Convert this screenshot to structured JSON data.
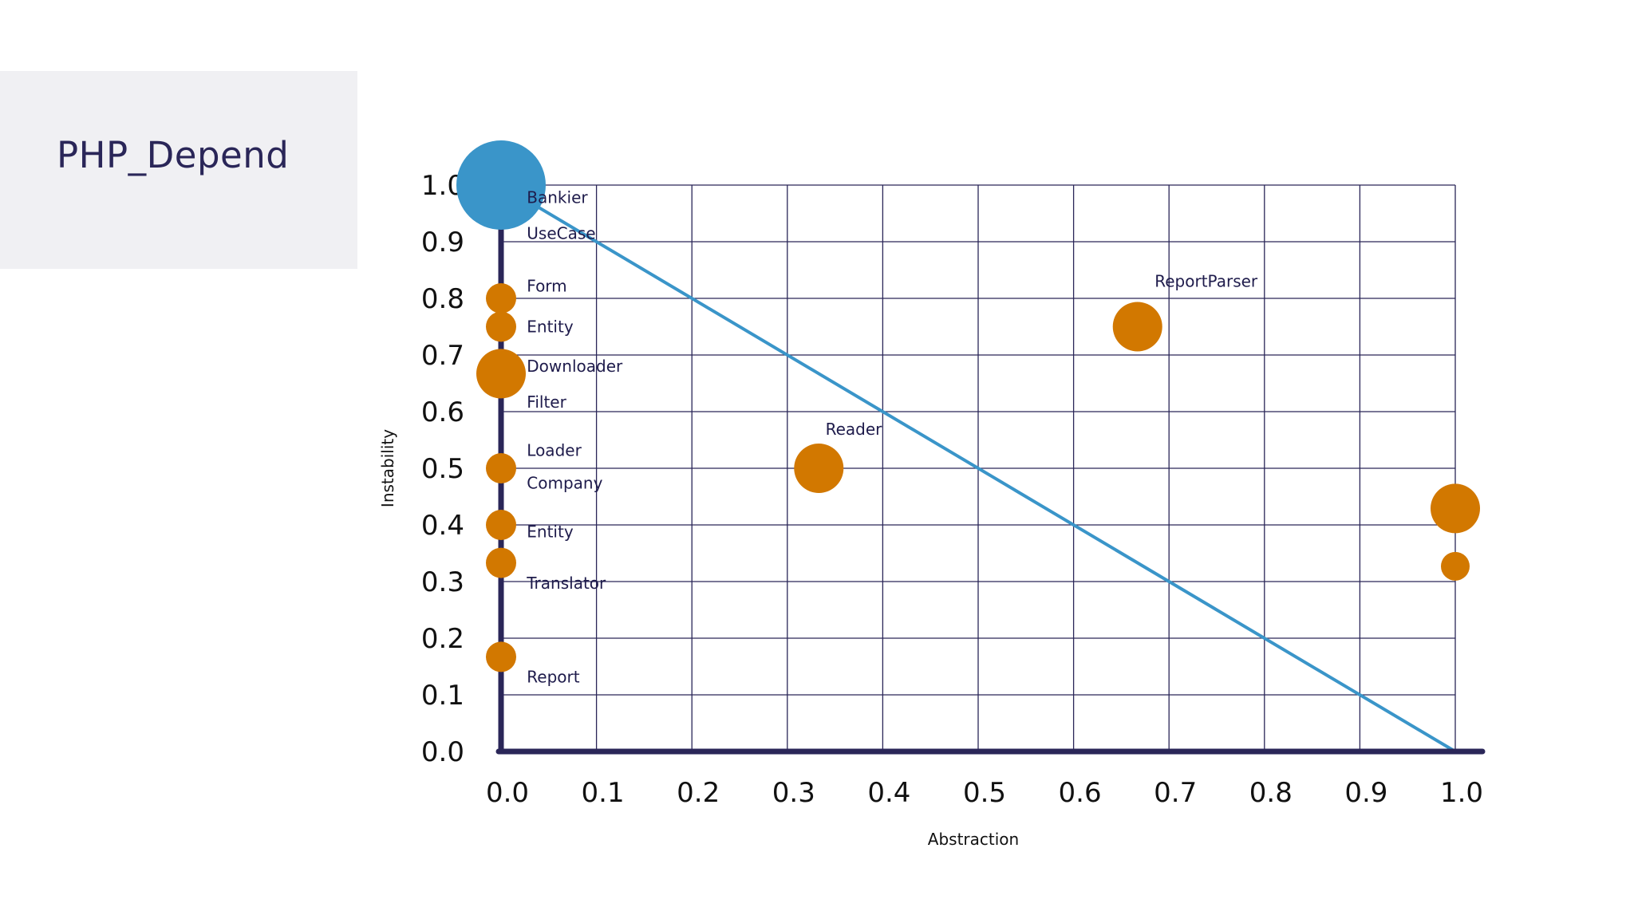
{
  "slide": {
    "title": "PHP_Depend"
  },
  "colors": {
    "title_box": "#f0f0f3",
    "title_text": "#2a2658",
    "axis": "#2a2658",
    "grid": "#2a2658",
    "main_sequence": "#3a95c9",
    "package": "#d27800",
    "highlight": "#3a95c9",
    "label": "#1e1b4b"
  },
  "chart_data": {
    "type": "scatter",
    "title": "",
    "xlabel": "Abstraction",
    "ylabel": "Instability",
    "xlim": [
      0,
      1
    ],
    "ylim": [
      0,
      1
    ],
    "grid": true,
    "x_ticks": [
      "0.0",
      "0.1",
      "0.2",
      "0.3",
      "0.4",
      "0.5",
      "0.6",
      "0.7",
      "0.8",
      "0.9",
      "1.0"
    ],
    "y_ticks": [
      "0.0",
      "0.1",
      "0.2",
      "0.3",
      "0.4",
      "0.5",
      "0.6",
      "0.7",
      "0.8",
      "0.9",
      "1.0"
    ],
    "main_sequence": {
      "from": [
        0,
        1
      ],
      "to": [
        1,
        0
      ]
    },
    "points": [
      {
        "x": 0.0,
        "y": 1.0,
        "size": "large",
        "highlight": true
      },
      {
        "x": 0.0,
        "y": 0.8,
        "size": "small"
      },
      {
        "x": 0.0,
        "y": 0.75,
        "size": "small"
      },
      {
        "x": 0.0,
        "y": 0.667,
        "size": "medium"
      },
      {
        "x": 0.0,
        "y": 0.5,
        "size": "small"
      },
      {
        "x": 0.0,
        "y": 0.4,
        "size": "small"
      },
      {
        "x": 0.0,
        "y": 0.333,
        "size": "small"
      },
      {
        "x": 0.0,
        "y": 0.167,
        "size": "small"
      },
      {
        "x": 0.333,
        "y": 0.5,
        "size": "medium"
      },
      {
        "x": 0.667,
        "y": 0.75,
        "size": "medium"
      },
      {
        "x": 1.0,
        "y": 0.429,
        "size": "medium"
      },
      {
        "x": 1.0,
        "y": 0.327,
        "size": "tiny"
      }
    ],
    "annotations": [
      {
        "text": "Bankier",
        "x": 0.027,
        "y": 0.978
      },
      {
        "text": "UseCase",
        "x": 0.027,
        "y": 0.915
      },
      {
        "text": "Form",
        "x": 0.027,
        "y": 0.822
      },
      {
        "text": "Entity",
        "x": 0.027,
        "y": 0.75
      },
      {
        "text": "Downloader",
        "x": 0.027,
        "y": 0.68
      },
      {
        "text": "Filter",
        "x": 0.027,
        "y": 0.617
      },
      {
        "text": "Loader",
        "x": 0.027,
        "y": 0.532
      },
      {
        "text": "Company",
        "x": 0.027,
        "y": 0.474
      },
      {
        "text": "Entity",
        "x": 0.027,
        "y": 0.388
      },
      {
        "text": "Translator",
        "x": 0.027,
        "y": 0.297
      },
      {
        "text": "Report",
        "x": 0.027,
        "y": 0.132
      },
      {
        "text": "Reader",
        "x": 0.34,
        "y": 0.569
      },
      {
        "text": "ReportParser",
        "x": 0.685,
        "y": 0.83
      }
    ]
  }
}
